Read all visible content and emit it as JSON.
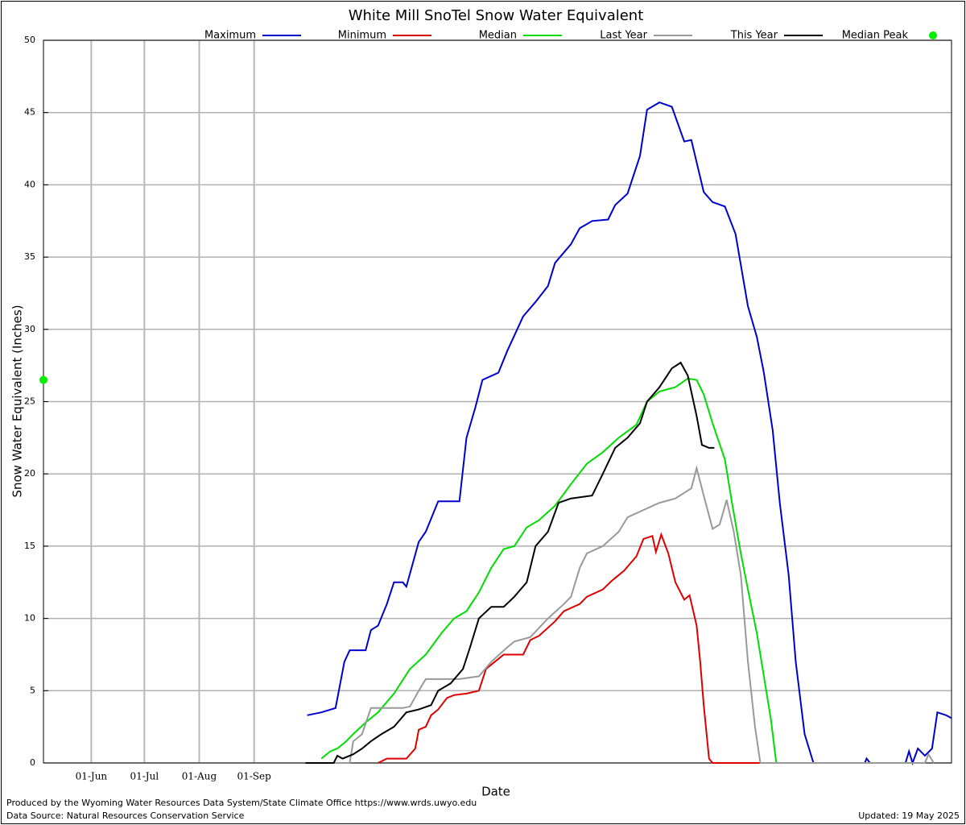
{
  "chart_data": {
    "type": "line",
    "title": "White Mill SnoTel Snow Water Equivalent",
    "x_label": "Date",
    "y_label": "Snow Water Equivalent (Inches)",
    "xlim": [
      0,
      513
    ],
    "ylim": [
      0,
      50
    ],
    "xticks": [
      {
        "value": 27,
        "label": "01-Jun"
      },
      {
        "value": 57,
        "label": "01-Jul"
      },
      {
        "value": 88,
        "label": "01-Aug"
      },
      {
        "value": 119,
        "label": "01-Sep"
      }
    ],
    "yticks": [
      0,
      5,
      10,
      15,
      20,
      25,
      30,
      35,
      40,
      45,
      50
    ],
    "grid": true,
    "series": [
      {
        "name": "Maximum",
        "color": "#0000cc",
        "x": [
          149,
          157,
          165,
          170,
          173,
          182,
          185,
          189,
          194,
          198,
          203,
          205,
          212,
          216,
          223,
          235,
          239,
          244,
          248,
          257,
          262,
          271,
          278,
          285,
          289,
          298,
          303,
          310,
          319,
          323,
          330,
          337,
          341,
          348,
          355,
          362,
          366,
          373,
          378,
          385,
          391,
          398,
          403,
          407,
          412,
          416,
          421,
          425,
          430,
          435,
          464,
          465,
          467,
          487,
          489,
          491,
          494,
          498,
          502,
          505,
          510,
          513
        ],
        "values": [
          3.3,
          3.5,
          3.8,
          7.0,
          7.8,
          7.8,
          9.2,
          9.5,
          11.0,
          12.5,
          12.5,
          12.2,
          15.3,
          16.0,
          18.1,
          18.1,
          22.5,
          24.6,
          26.5,
          27.0,
          28.5,
          30.9,
          31.9,
          33.0,
          34.6,
          35.9,
          37.0,
          37.5,
          37.6,
          38.6,
          39.4,
          42.0,
          45.2,
          45.7,
          45.4,
          43.0,
          43.1,
          39.5,
          38.8,
          38.5,
          36.6,
          31.6,
          29.5,
          27.0,
          23.0,
          18.0,
          13.0,
          7.0,
          2.0,
          0,
          0,
          0.3,
          0,
          0,
          0.8,
          0,
          1.0,
          0.5,
          1.0,
          3.5,
          3.3,
          3.1
        ]
      },
      {
        "name": "Minimum",
        "color": "#dd0000",
        "x": [
          189,
          194,
          205,
          210,
          212,
          216,
          219,
          223,
          228,
          232,
          239,
          246,
          250,
          257,
          260,
          271,
          275,
          280,
          289,
          294,
          303,
          307,
          316,
          321,
          328,
          335,
          339,
          344,
          346,
          349,
          353,
          357,
          362,
          365,
          369,
          371,
          373,
          376,
          378,
          405
        ],
        "values": [
          0,
          0.3,
          0.3,
          1.0,
          2.3,
          2.5,
          3.3,
          3.7,
          4.5,
          4.7,
          4.8,
          5.0,
          6.5,
          7.2,
          7.5,
          7.5,
          8.5,
          8.8,
          9.8,
          10.5,
          11.0,
          11.5,
          12.0,
          12.6,
          13.3,
          14.3,
          15.5,
          15.7,
          14.6,
          15.8,
          14.5,
          12.5,
          11.3,
          11.6,
          9.5,
          7.0,
          4.0,
          0.3,
          0,
          0
        ]
      },
      {
        "name": "Median",
        "color": "#00dd00",
        "x": [
          157,
          162,
          166,
          171,
          175,
          182,
          189,
          198,
          207,
          216,
          225,
          232,
          239,
          246,
          253,
          260,
          266,
          273,
          280,
          289,
          298,
          307,
          316,
          325,
          335,
          341,
          348,
          357,
          364,
          369,
          373,
          378,
          385,
          389,
          394,
          398,
          403,
          407,
          411,
          414
        ],
        "values": [
          0.3,
          0.8,
          1.0,
          1.5,
          2.0,
          2.8,
          3.5,
          4.8,
          6.5,
          7.5,
          9.0,
          10.0,
          10.5,
          11.8,
          13.5,
          14.8,
          15.0,
          16.3,
          16.8,
          17.8,
          19.3,
          20.7,
          21.5,
          22.5,
          23.4,
          25.0,
          25.7,
          26.0,
          26.6,
          26.5,
          25.5,
          23.5,
          21.0,
          18.0,
          14.5,
          12.0,
          9.0,
          6.0,
          3.0,
          0
        ]
      },
      {
        "name": "Last Year",
        "color": "#999999",
        "x": [
          148,
          173,
          175,
          180,
          185,
          198,
          203,
          207,
          212,
          216,
          225,
          235,
          246,
          253,
          262,
          266,
          275,
          285,
          294,
          298,
          303,
          307,
          316,
          325,
          330,
          339,
          348,
          357,
          366,
          369,
          373,
          378,
          382,
          386,
          390,
          394,
          398,
          402,
          405,
          498,
          500,
          503
        ],
        "values": [
          0,
          0,
          1.5,
          2.0,
          3.8,
          3.8,
          3.8,
          3.9,
          5.0,
          5.8,
          5.8,
          5.8,
          6.0,
          7.0,
          8.0,
          8.4,
          8.7,
          10.0,
          11.0,
          11.5,
          13.5,
          14.5,
          15.0,
          16.0,
          17.0,
          17.5,
          18.0,
          18.3,
          19.0,
          20.4,
          18.5,
          16.2,
          16.5,
          18.2,
          16.0,
          13.0,
          7.0,
          2.5,
          0,
          0,
          0.6,
          0
        ]
      },
      {
        "name": "This Year",
        "color": "#000000",
        "x": [
          148,
          164,
          166,
          169,
          175,
          180,
          185,
          191,
          198,
          205,
          212,
          219,
          223,
          230,
          237,
          241,
          246,
          253,
          260,
          266,
          273,
          278,
          285,
          291,
          298,
          310,
          316,
          323,
          330,
          337,
          341,
          348,
          355,
          360,
          364,
          369,
          372,
          376,
          379
        ],
        "values": [
          0,
          0,
          0.5,
          0.3,
          0.6,
          1.0,
          1.5,
          2.0,
          2.5,
          3.5,
          3.7,
          4.0,
          5.0,
          5.5,
          6.5,
          8.0,
          10.0,
          10.8,
          10.8,
          11.5,
          12.5,
          15.0,
          16.0,
          18.0,
          18.3,
          18.5,
          20.0,
          21.8,
          22.5,
          23.5,
          25.0,
          26.0,
          27.3,
          27.7,
          26.8,
          24.0,
          22.0,
          21.8,
          21.8
        ]
      },
      {
        "name": "Median Peak",
        "color": "#00ee00",
        "marker": "point",
        "x": [
          0
        ],
        "values": [
          26.5
        ]
      }
    ],
    "footer_left_1": "Produced by the Wyoming Water Resources Data System/State Climate Office https://www.wrds.uwyo.edu",
    "footer_left_2": "Data Source: Natural Resources Conservation Service",
    "footer_right": "Updated: 19 May 2025"
  }
}
